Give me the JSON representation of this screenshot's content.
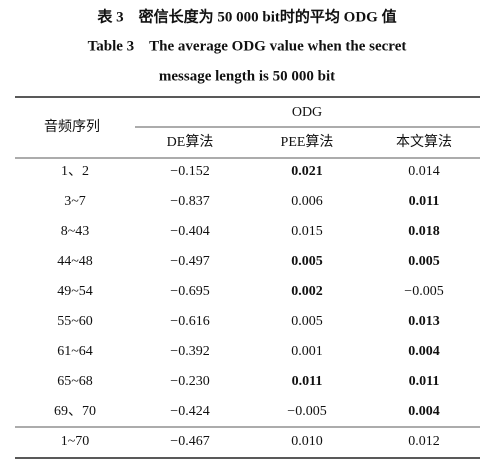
{
  "header": {
    "title_cn": "表 3　密信长度为 50 000 bit时的平均 ODG 值",
    "title_en_lines": [
      "Table 3　The average ODG value when the secret",
      "message length is 50 000 bit"
    ]
  },
  "table": {
    "row_header": "音频序列",
    "group_header": "ODG",
    "columns": [
      "DE算法",
      "PEE算法",
      "本文算法"
    ],
    "rows": [
      {
        "label": "1、2",
        "values": [
          "−0.152",
          "0.021",
          "0.014"
        ],
        "bold": [
          false,
          true,
          false
        ]
      },
      {
        "label": "3~7",
        "values": [
          "−0.837",
          "0.006",
          "0.011"
        ],
        "bold": [
          false,
          false,
          true
        ]
      },
      {
        "label": "8~43",
        "values": [
          "−0.404",
          "0.015",
          "0.018"
        ],
        "bold": [
          false,
          false,
          true
        ]
      },
      {
        "label": "44~48",
        "values": [
          "−0.497",
          "0.005",
          "0.005"
        ],
        "bold": [
          false,
          true,
          true
        ]
      },
      {
        "label": "49~54",
        "values": [
          "−0.695",
          "0.002",
          "−0.005"
        ],
        "bold": [
          false,
          true,
          false
        ]
      },
      {
        "label": "55~60",
        "values": [
          "−0.616",
          "0.005",
          "0.013"
        ],
        "bold": [
          false,
          false,
          true
        ]
      },
      {
        "label": "61~64",
        "values": [
          "−0.392",
          "0.001",
          "0.004"
        ],
        "bold": [
          false,
          false,
          true
        ]
      },
      {
        "label": "65~68",
        "values": [
          "−0.230",
          "0.011",
          "0.011"
        ],
        "bold": [
          false,
          true,
          true
        ]
      },
      {
        "label": "69、70",
        "values": [
          "−0.424",
          "−0.005",
          "0.004"
        ],
        "bold": [
          false,
          false,
          true
        ]
      }
    ],
    "summary": {
      "label": "1~70",
      "values": [
        "−0.467",
        "0.010",
        "0.012"
      ],
      "bold": [
        false,
        false,
        false
      ]
    }
  }
}
